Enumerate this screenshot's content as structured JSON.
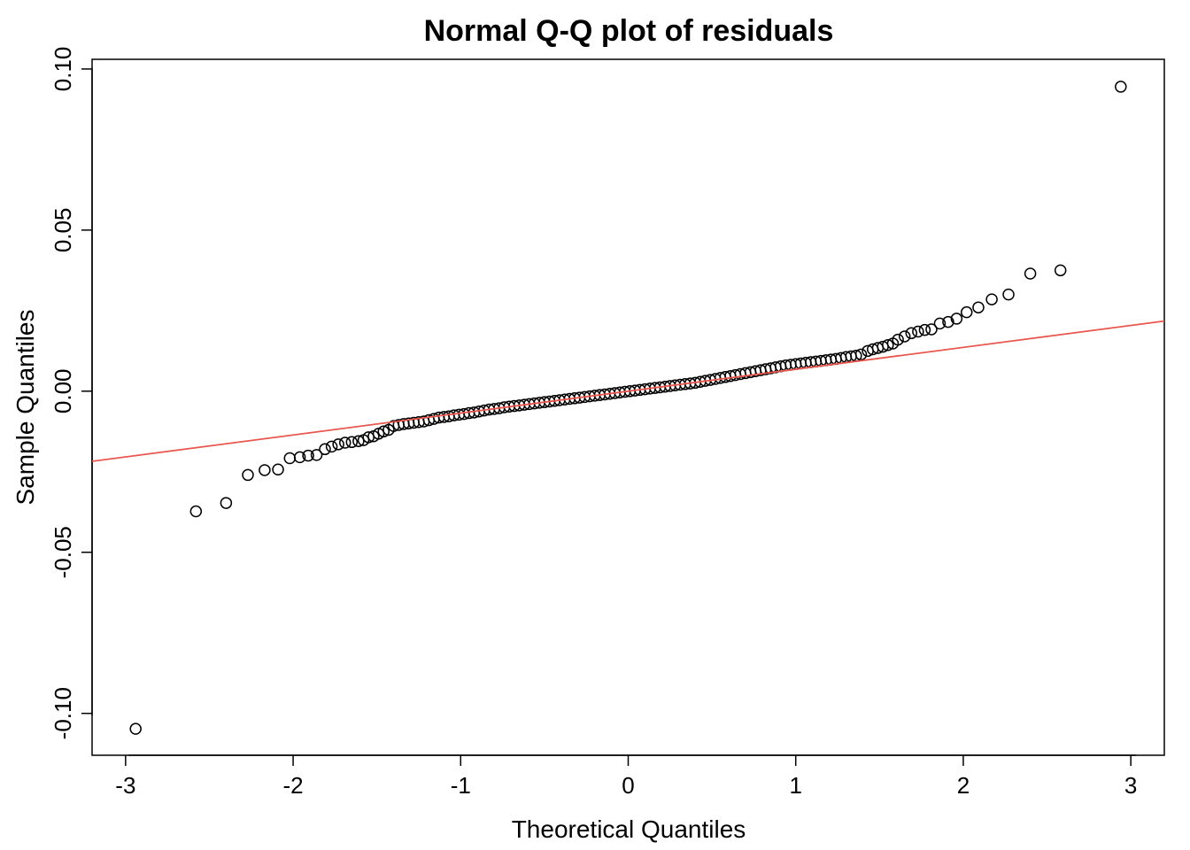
{
  "chart_data": {
    "type": "scatter",
    "title": "Normal Q-Q plot of residuals",
    "xlabel": "Theoretical Quantiles",
    "ylabel": "Sample Quantiles",
    "xlim": [
      -3.2,
      3.2
    ],
    "ylim": [
      -0.113,
      0.103
    ],
    "x_ticks": [
      -3,
      -2,
      -1,
      0,
      1,
      2,
      3
    ],
    "x_tick_labels": [
      "-3",
      "-2",
      "-1",
      "0",
      "1",
      "2",
      "3"
    ],
    "y_ticks": [
      -0.1,
      -0.05,
      0.0,
      0.05,
      0.1
    ],
    "y_tick_labels": [
      "-0.10",
      "-0.05",
      "0.00",
      "0.05",
      "0.10"
    ],
    "grid": false,
    "reference_line": {
      "color": "#e8574f",
      "slope": 0.0068,
      "intercept": 0.0
    },
    "points_color": "#000000",
    "marker": "open-circle",
    "points": [
      [
        -2.94,
        -0.1048
      ],
      [
        -2.58,
        -0.0373
      ],
      [
        -2.4,
        -0.0347
      ],
      [
        -2.27,
        -0.026
      ],
      [
        -2.17,
        -0.0245
      ],
      [
        -2.09,
        -0.0243
      ],
      [
        -2.02,
        -0.0208
      ],
      [
        -1.96,
        -0.0205
      ],
      [
        -1.91,
        -0.02
      ],
      [
        -1.86,
        -0.0198
      ],
      [
        -1.81,
        -0.018
      ],
      [
        -1.77,
        -0.0172
      ],
      [
        -1.73,
        -0.0165
      ],
      [
        -1.69,
        -0.016
      ],
      [
        -1.65,
        -0.0158
      ],
      [
        -1.61,
        -0.0155
      ],
      [
        -1.58,
        -0.0152
      ],
      [
        -1.55,
        -0.0143
      ],
      [
        -1.52,
        -0.014
      ],
      [
        -1.49,
        -0.0132
      ],
      [
        -1.46,
        -0.0125
      ],
      [
        -1.43,
        -0.012
      ],
      [
        -1.4,
        -0.0108
      ],
      [
        -1.37,
        -0.0105
      ],
      [
        -1.34,
        -0.0102
      ],
      [
        -1.31,
        -0.01
      ],
      [
        -1.28,
        -0.0098
      ],
      [
        -1.25,
        -0.0096
      ],
      [
        -1.22,
        -0.0094
      ],
      [
        -1.19,
        -0.009
      ],
      [
        -1.16,
        -0.0086
      ],
      [
        -1.13,
        -0.0082
      ],
      [
        -1.1,
        -0.008
      ],
      [
        -1.07,
        -0.0078
      ],
      [
        -1.04,
        -0.0075
      ],
      [
        -1.01,
        -0.0073
      ],
      [
        -0.98,
        -0.0071
      ],
      [
        -0.95,
        -0.0068
      ],
      [
        -0.92,
        -0.0066
      ],
      [
        -0.89,
        -0.0063
      ],
      [
        -0.86,
        -0.006
      ],
      [
        -0.83,
        -0.0057
      ],
      [
        -0.8,
        -0.0055
      ],
      [
        -0.77,
        -0.0053
      ],
      [
        -0.74,
        -0.005
      ],
      [
        -0.71,
        -0.0048
      ],
      [
        -0.68,
        -0.0046
      ],
      [
        -0.65,
        -0.0044
      ],
      [
        -0.62,
        -0.0042
      ],
      [
        -0.59,
        -0.004
      ],
      [
        -0.56,
        -0.0038
      ],
      [
        -0.53,
        -0.0036
      ],
      [
        -0.5,
        -0.0034
      ],
      [
        -0.47,
        -0.0032
      ],
      [
        -0.44,
        -0.003
      ],
      [
        -0.41,
        -0.0028
      ],
      [
        -0.38,
        -0.0026
      ],
      [
        -0.35,
        -0.0024
      ],
      [
        -0.32,
        -0.0022
      ],
      [
        -0.29,
        -0.002
      ],
      [
        -0.26,
        -0.0018
      ],
      [
        -0.23,
        -0.0016
      ],
      [
        -0.2,
        -0.0014
      ],
      [
        -0.17,
        -0.0012
      ],
      [
        -0.14,
        -0.001
      ],
      [
        -0.11,
        -0.0008
      ],
      [
        -0.08,
        -0.0006
      ],
      [
        -0.05,
        -0.0004
      ],
      [
        -0.02,
        -0.0002
      ],
      [
        0.01,
        0.0
      ],
      [
        0.04,
        0.0002
      ],
      [
        0.07,
        0.0004
      ],
      [
        0.1,
        0.0006
      ],
      [
        0.13,
        0.0008
      ],
      [
        0.16,
        0.001
      ],
      [
        0.19,
        0.0012
      ],
      [
        0.22,
        0.0014
      ],
      [
        0.25,
        0.0016
      ],
      [
        0.28,
        0.0018
      ],
      [
        0.31,
        0.002
      ],
      [
        0.34,
        0.0022
      ],
      [
        0.37,
        0.0024
      ],
      [
        0.4,
        0.0026
      ],
      [
        0.43,
        0.0029
      ],
      [
        0.46,
        0.0032
      ],
      [
        0.49,
        0.0035
      ],
      [
        0.52,
        0.0038
      ],
      [
        0.55,
        0.0041
      ],
      [
        0.58,
        0.0044
      ],
      [
        0.61,
        0.0047
      ],
      [
        0.64,
        0.005
      ],
      [
        0.67,
        0.0053
      ],
      [
        0.7,
        0.0056
      ],
      [
        0.73,
        0.0059
      ],
      [
        0.76,
        0.0062
      ],
      [
        0.79,
        0.0065
      ],
      [
        0.82,
        0.0068
      ],
      [
        0.85,
        0.0071
      ],
      [
        0.88,
        0.0074
      ],
      [
        0.91,
        0.0077
      ],
      [
        0.94,
        0.008
      ],
      [
        0.97,
        0.0082
      ],
      [
        1.0,
        0.0084
      ],
      [
        1.03,
        0.0086
      ],
      [
        1.06,
        0.0088
      ],
      [
        1.09,
        0.009
      ],
      [
        1.12,
        0.0092
      ],
      [
        1.15,
        0.0094
      ],
      [
        1.18,
        0.0096
      ],
      [
        1.21,
        0.0098
      ],
      [
        1.24,
        0.01
      ],
      [
        1.27,
        0.0103
      ],
      [
        1.3,
        0.0106
      ],
      [
        1.33,
        0.0108
      ],
      [
        1.36,
        0.011
      ],
      [
        1.39,
        0.0114
      ],
      [
        1.43,
        0.0125
      ],
      [
        1.46,
        0.013
      ],
      [
        1.49,
        0.0134
      ],
      [
        1.52,
        0.0138
      ],
      [
        1.55,
        0.0143
      ],
      [
        1.58,
        0.0148
      ],
      [
        1.61,
        0.016
      ],
      [
        1.65,
        0.017
      ],
      [
        1.69,
        0.018
      ],
      [
        1.73,
        0.0185
      ],
      [
        1.77,
        0.019
      ],
      [
        1.81,
        0.0192
      ],
      [
        1.86,
        0.021
      ],
      [
        1.91,
        0.0215
      ],
      [
        1.96,
        0.0225
      ],
      [
        2.02,
        0.0245
      ],
      [
        2.09,
        0.026
      ],
      [
        2.17,
        0.0285
      ],
      [
        2.27,
        0.03
      ],
      [
        2.4,
        0.0365
      ],
      [
        2.58,
        0.0375
      ],
      [
        2.94,
        0.0945
      ]
    ]
  }
}
